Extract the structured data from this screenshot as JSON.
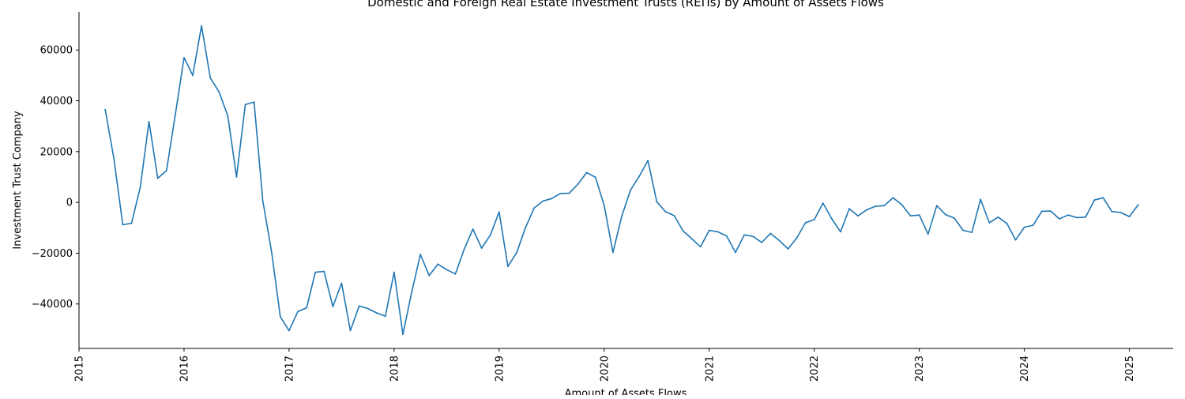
{
  "chart_data": {
    "type": "line",
    "title": "Domestic and Foreign Real Estate Investment Trusts (REITs) by Amount of Assets Flows",
    "xlabel": "Amount of Assets Flows",
    "ylabel": "Investment Trust Company",
    "xlim": [
      "2015-01",
      "2025-06"
    ],
    "ylim": [
      -57500,
      75000
    ],
    "x_ticks": [
      "2015",
      "2016",
      "2017",
      "2018",
      "2019",
      "2020",
      "2021",
      "2022",
      "2023",
      "2024",
      "2025"
    ],
    "y_ticks": [
      -40000,
      -20000,
      0,
      20000,
      40000,
      60000
    ],
    "grid": false,
    "legend": "none",
    "line_color": "#1f77b4",
    "series": [
      {
        "x": [
          "2015-04",
          "2015-05",
          "2015-06",
          "2015-07",
          "2015-08",
          "2015-09",
          "2015-10",
          "2015-11",
          "2015-12",
          "2016-01",
          "2016-02",
          "2016-03",
          "2016-04",
          "2016-05",
          "2016-06",
          "2016-07",
          "2016-08",
          "2016-09",
          "2016-10",
          "2016-11",
          "2016-12",
          "2017-01",
          "2017-02",
          "2017-03",
          "2017-04",
          "2017-05",
          "2017-06",
          "2017-07",
          "2017-08",
          "2017-09",
          "2017-10",
          "2017-11",
          "2017-12",
          "2018-01",
          "2018-02",
          "2018-03",
          "2018-04",
          "2018-05",
          "2018-06",
          "2018-07",
          "2018-08",
          "2018-09",
          "2018-10",
          "2018-11",
          "2018-12",
          "2019-01",
          "2019-02",
          "2019-03",
          "2019-04",
          "2019-05",
          "2019-06",
          "2019-07",
          "2019-08",
          "2019-09",
          "2019-10",
          "2019-11",
          "2019-12",
          "2020-01",
          "2020-02",
          "2020-03",
          "2020-04",
          "2020-05",
          "2020-06",
          "2020-07",
          "2020-08",
          "2020-09",
          "2020-10",
          "2020-11",
          "2020-12",
          "2021-01",
          "2021-02",
          "2021-03",
          "2021-04",
          "2021-05",
          "2021-06",
          "2021-07",
          "2021-08",
          "2021-09",
          "2021-10",
          "2021-11",
          "2021-12",
          "2022-01",
          "2022-02",
          "2022-03",
          "2022-04",
          "2022-05",
          "2022-06",
          "2022-07",
          "2022-08",
          "2022-09",
          "2022-10",
          "2022-11",
          "2022-12",
          "2023-01",
          "2023-02",
          "2023-03",
          "2023-04",
          "2023-05",
          "2023-06",
          "2023-07",
          "2023-08",
          "2023-09",
          "2023-10",
          "2023-11",
          "2023-12",
          "2024-01",
          "2024-02",
          "2024-03",
          "2024-04",
          "2024-05",
          "2024-06",
          "2024-07",
          "2024-08",
          "2024-09",
          "2024-10",
          "2024-11",
          "2024-12",
          "2025-01",
          "2025-02"
        ],
        "values": [
          36500,
          17000,
          -8800,
          -8200,
          6000,
          31800,
          9500,
          12500,
          34500,
          57000,
          50000,
          69500,
          49000,
          43500,
          34000,
          10000,
          38500,
          39500,
          500,
          -19500,
          -45000,
          -50500,
          -43000,
          -41500,
          -27500,
          -27200,
          -41000,
          -31800,
          -50500,
          -40800,
          -41800,
          -43500,
          -44800,
          -27500,
          -52000,
          -35500,
          -20500,
          -28800,
          -24300,
          -26500,
          -28200,
          -18500,
          -10500,
          -18000,
          -12800,
          -3800,
          -25200,
          -19800,
          -10000,
          -2200,
          500,
          1500,
          3500,
          3600,
          7200,
          11700,
          9900,
          -1200,
          -19700,
          -5500,
          4800,
          10200,
          16500,
          300,
          -3700,
          -5200,
          -11200,
          -14300,
          -17500,
          -11000,
          -11600,
          -13300,
          -19700,
          -12800,
          -13400,
          -15800,
          -12200,
          -15000,
          -18300,
          -14000,
          -8000,
          -6800,
          -300,
          -6500,
          -11600,
          -2500,
          -5300,
          -2900,
          -1500,
          -1300,
          1800,
          -900,
          -5300,
          -5000,
          -12500,
          -1300,
          -4800,
          -6200,
          -11000,
          -11800,
          1200,
          -8000,
          -5800,
          -8300,
          -14800,
          -9800,
          -9000,
          -3500,
          -3400,
          -6500,
          -5000,
          -6000,
          -5800,
          900,
          1800,
          -3600,
          -4000,
          -5600,
          -1000
        ]
      }
    ]
  }
}
